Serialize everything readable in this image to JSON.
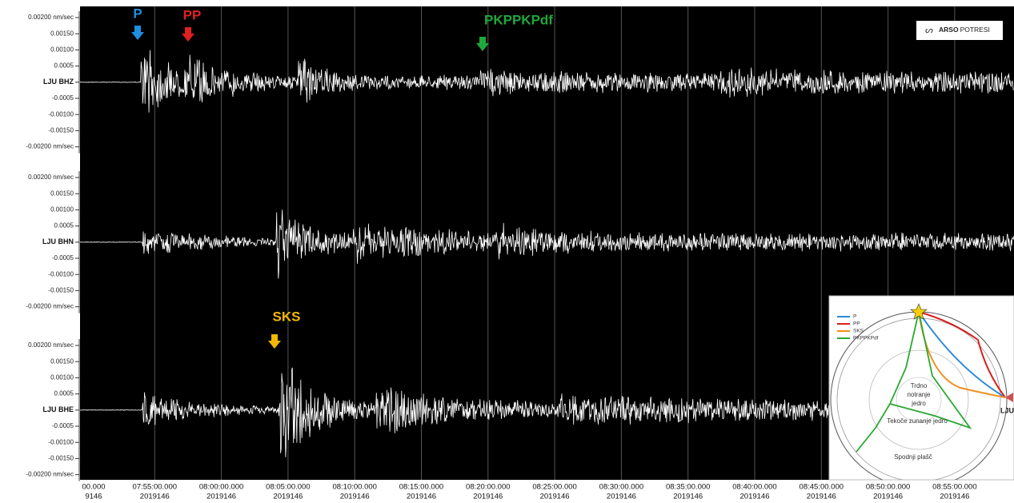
{
  "channels": [
    {
      "ticks": [
        "0.00200 nm/sec",
        "0.00150",
        "0.00100",
        "0.0005",
        "LJU BHZ",
        "-0.0005",
        "-0.00100",
        "-0.00150",
        "-0.00200 nm/sec"
      ]
    },
    {
      "ticks": [
        "0.00200 nm/sec",
        "0.00150",
        "0.00100",
        "0.0005",
        "LJU BHN",
        "-0.0005",
        "-0.00100",
        "-0.00150",
        "-0.00200 nm/sec"
      ]
    },
    {
      "ticks": [
        "0.00200 nm/sec",
        "0.00150",
        "0.00100",
        "0.0005",
        "LJU BHE",
        "-0.0005",
        "-0.00100",
        "-0.00150",
        "-0.00200 nm/sec"
      ]
    }
  ],
  "time_axis": [
    {
      "time": "00.000",
      "date": "9146"
    },
    {
      "time": "07:55:00.000",
      "date": "2019146"
    },
    {
      "time": "08:00:00.000",
      "date": "2019146"
    },
    {
      "time": "08:05:00.000",
      "date": "2019146"
    },
    {
      "time": "08:10:00.000",
      "date": "2019146"
    },
    {
      "time": "08:15:00.000",
      "date": "2019146"
    },
    {
      "time": "08:20:00.000",
      "date": "2019146"
    },
    {
      "time": "08:25:00.000",
      "date": "2019146"
    },
    {
      "time": "08:30:00.000",
      "date": "2019146"
    },
    {
      "time": "08:35:00.000",
      "date": "2019146"
    },
    {
      "time": "08:40:00.000",
      "date": "2019146"
    },
    {
      "time": "08:45:00.000",
      "date": "2019146"
    },
    {
      "time": "08:50:00.000",
      "date": "2019146"
    },
    {
      "time": "08:55:00.000",
      "date": "2019146"
    }
  ],
  "phases": [
    {
      "label": "P",
      "color": "#1f8fe0"
    },
    {
      "label": "PP",
      "color": "#e02020"
    },
    {
      "label": "PKPPKPdf",
      "color": "#1fa83c"
    },
    {
      "label": "SKS",
      "color": "#f2b705"
    }
  ],
  "logo": {
    "brand": "ARSO",
    "text": "POTRESI"
  },
  "inset": {
    "legend": [
      "P",
      "PP",
      "SKS",
      "PKPPKPdf"
    ],
    "inner_core": [
      "Trdno",
      "notranje",
      "jedro"
    ],
    "outer_core": "Tekoče zunanje jedro",
    "mantle": "Spodnji plašč",
    "station": "LJU"
  }
}
